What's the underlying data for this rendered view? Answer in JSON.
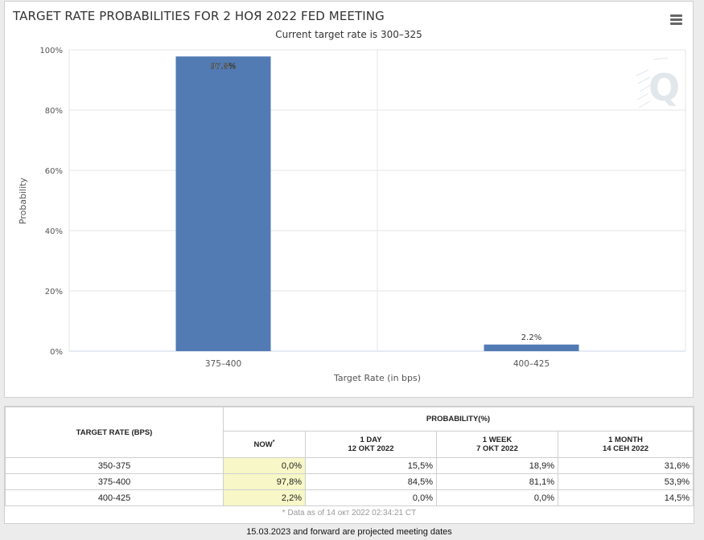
{
  "chart_data": {
    "type": "bar",
    "title": "TARGET RATE PROBABILITIES FOR 2 НОЯ 2022 FED MEETING",
    "subtitle": "Current target rate is 300–325",
    "xlabel": "Target Rate (in bps)",
    "ylabel": "Probability",
    "categories": [
      "375–400",
      "400–425"
    ],
    "values": [
      97.8,
      2.2
    ],
    "data_labels": [
      "97.8%",
      "2.2%"
    ],
    "ylim": [
      0,
      100
    ],
    "yticks": [
      "0%",
      "20%",
      "40%",
      "60%",
      "80%",
      "100%"
    ],
    "grid": true,
    "legend": "none",
    "bar_color": "#527bb4"
  },
  "menu": {
    "icon": "hamburger-icon"
  },
  "watermark": {
    "icon": "q-logo"
  },
  "table": {
    "rate_header": "TARGET RATE (BPS)",
    "prob_header": "PROBABILITY(%)",
    "columns": [
      {
        "line1": "NOW",
        "line2": ""
      },
      {
        "line1": "1 DAY",
        "line2": "12 OKT 2022"
      },
      {
        "line1": "1 WEEK",
        "line2": "7 OKT 2022"
      },
      {
        "line1": "1 MONTH",
        "line2": "14 СЕН 2022"
      }
    ],
    "now_marker": "*",
    "rows": [
      {
        "rate": "350-375",
        "values": [
          "0,0%",
          "15,5%",
          "18,9%",
          "31,6%"
        ]
      },
      {
        "rate": "375-400",
        "values": [
          "97,8%",
          "84,5%",
          "81,1%",
          "53,9%"
        ]
      },
      {
        "rate": "400-425",
        "values": [
          "2,2%",
          "0,0%",
          "0,0%",
          "14,5%"
        ]
      }
    ],
    "footnote": "* Data as of 14 окт 2022 02:34:21 CT"
  },
  "footer_note": "15.03.2023 and forward are projected meeting dates",
  "colors": {
    "now_highlight": "#f7f7c7",
    "grid": "#e6e6e6"
  }
}
